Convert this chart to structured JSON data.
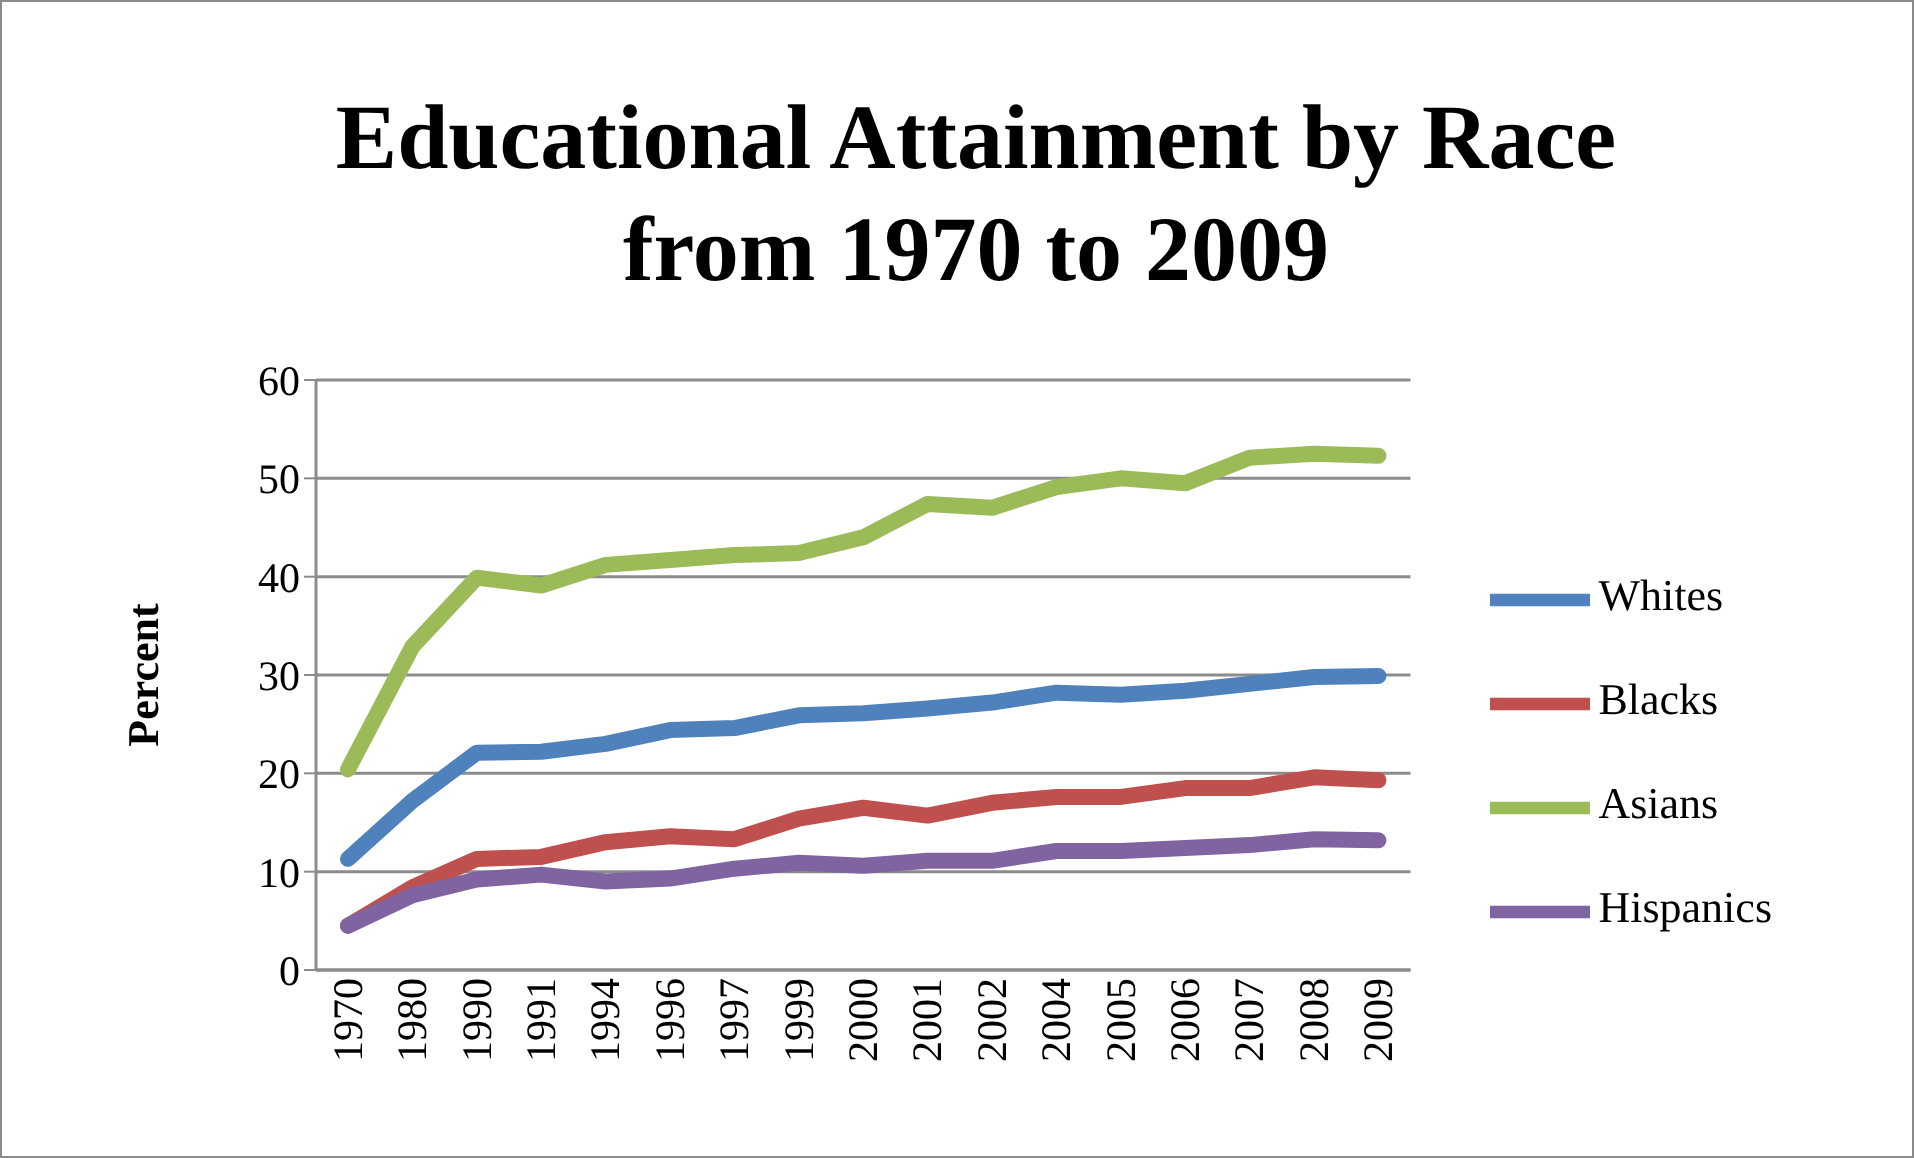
{
  "chart_data": {
    "type": "line",
    "title": "Educational Attainment by Race from 1970 to 2009",
    "ylabel": "Percent",
    "categories": [
      "1970",
      "1980",
      "1990",
      "1991",
      "1994",
      "1996",
      "1997",
      "1999",
      "2000",
      "2001",
      "2002",
      "2004",
      "2005",
      "2006",
      "2007",
      "2008",
      "2009"
    ],
    "series": [
      {
        "name": "Whites",
        "color": "#4f81bd",
        "values": [
          11.3,
          17.2,
          22.1,
          22.2,
          23,
          24.4,
          24.6,
          25.9,
          26.1,
          26.6,
          27.2,
          28.2,
          28,
          28.4,
          29.1,
          29.8,
          29.9
        ]
      },
      {
        "name": "Blacks",
        "color": "#c0504d",
        "values": [
          4.5,
          8.4,
          11.3,
          11.5,
          13,
          13.6,
          13.3,
          15.4,
          16.5,
          15.7,
          17,
          17.6,
          17.6,
          18.5,
          18.5,
          19.6,
          19.3
        ]
      },
      {
        "name": "Asians",
        "color": "#9bbb59",
        "values": [
          20.4,
          32.9,
          39.9,
          39.1,
          41.2,
          41.7,
          42.2,
          42.4,
          44,
          47.4,
          47,
          49.1,
          50,
          49.5,
          52.1,
          52.5,
          52.3
        ]
      },
      {
        "name": "Hispanics",
        "color": "#8064a2",
        "values": [
          4.5,
          7.6,
          9.2,
          9.7,
          9,
          9.3,
          10.3,
          10.9,
          10.6,
          11.1,
          11.1,
          12.1,
          12.1,
          12.4,
          12.7,
          13.3,
          13.2
        ]
      }
    ],
    "ylim": [
      0,
      60
    ],
    "yticks": [
      0,
      10,
      20,
      30,
      40,
      50,
      60
    ],
    "grid": "y",
    "legend": "right",
    "marker": "none",
    "line_style": "solid"
  }
}
